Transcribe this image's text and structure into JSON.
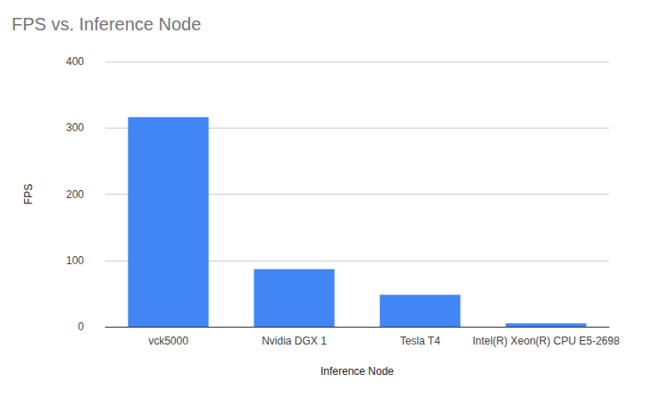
{
  "chart_data": {
    "type": "bar",
    "title": "FPS vs. Inference Node",
    "x_label": "Inference Node",
    "y_label": "FPS",
    "categories": [
      "vck5000",
      "Nvidia DGX 1",
      "Tesla T4",
      "Intel(R) Xeon(R) CPU E5-2698"
    ],
    "values": [
      316,
      87,
      48,
      5
    ],
    "color": "#4285f4",
    "ylim": [
      0,
      400
    ],
    "yticks": [
      0,
      100,
      200,
      300,
      400
    ],
    "grid": true
  }
}
